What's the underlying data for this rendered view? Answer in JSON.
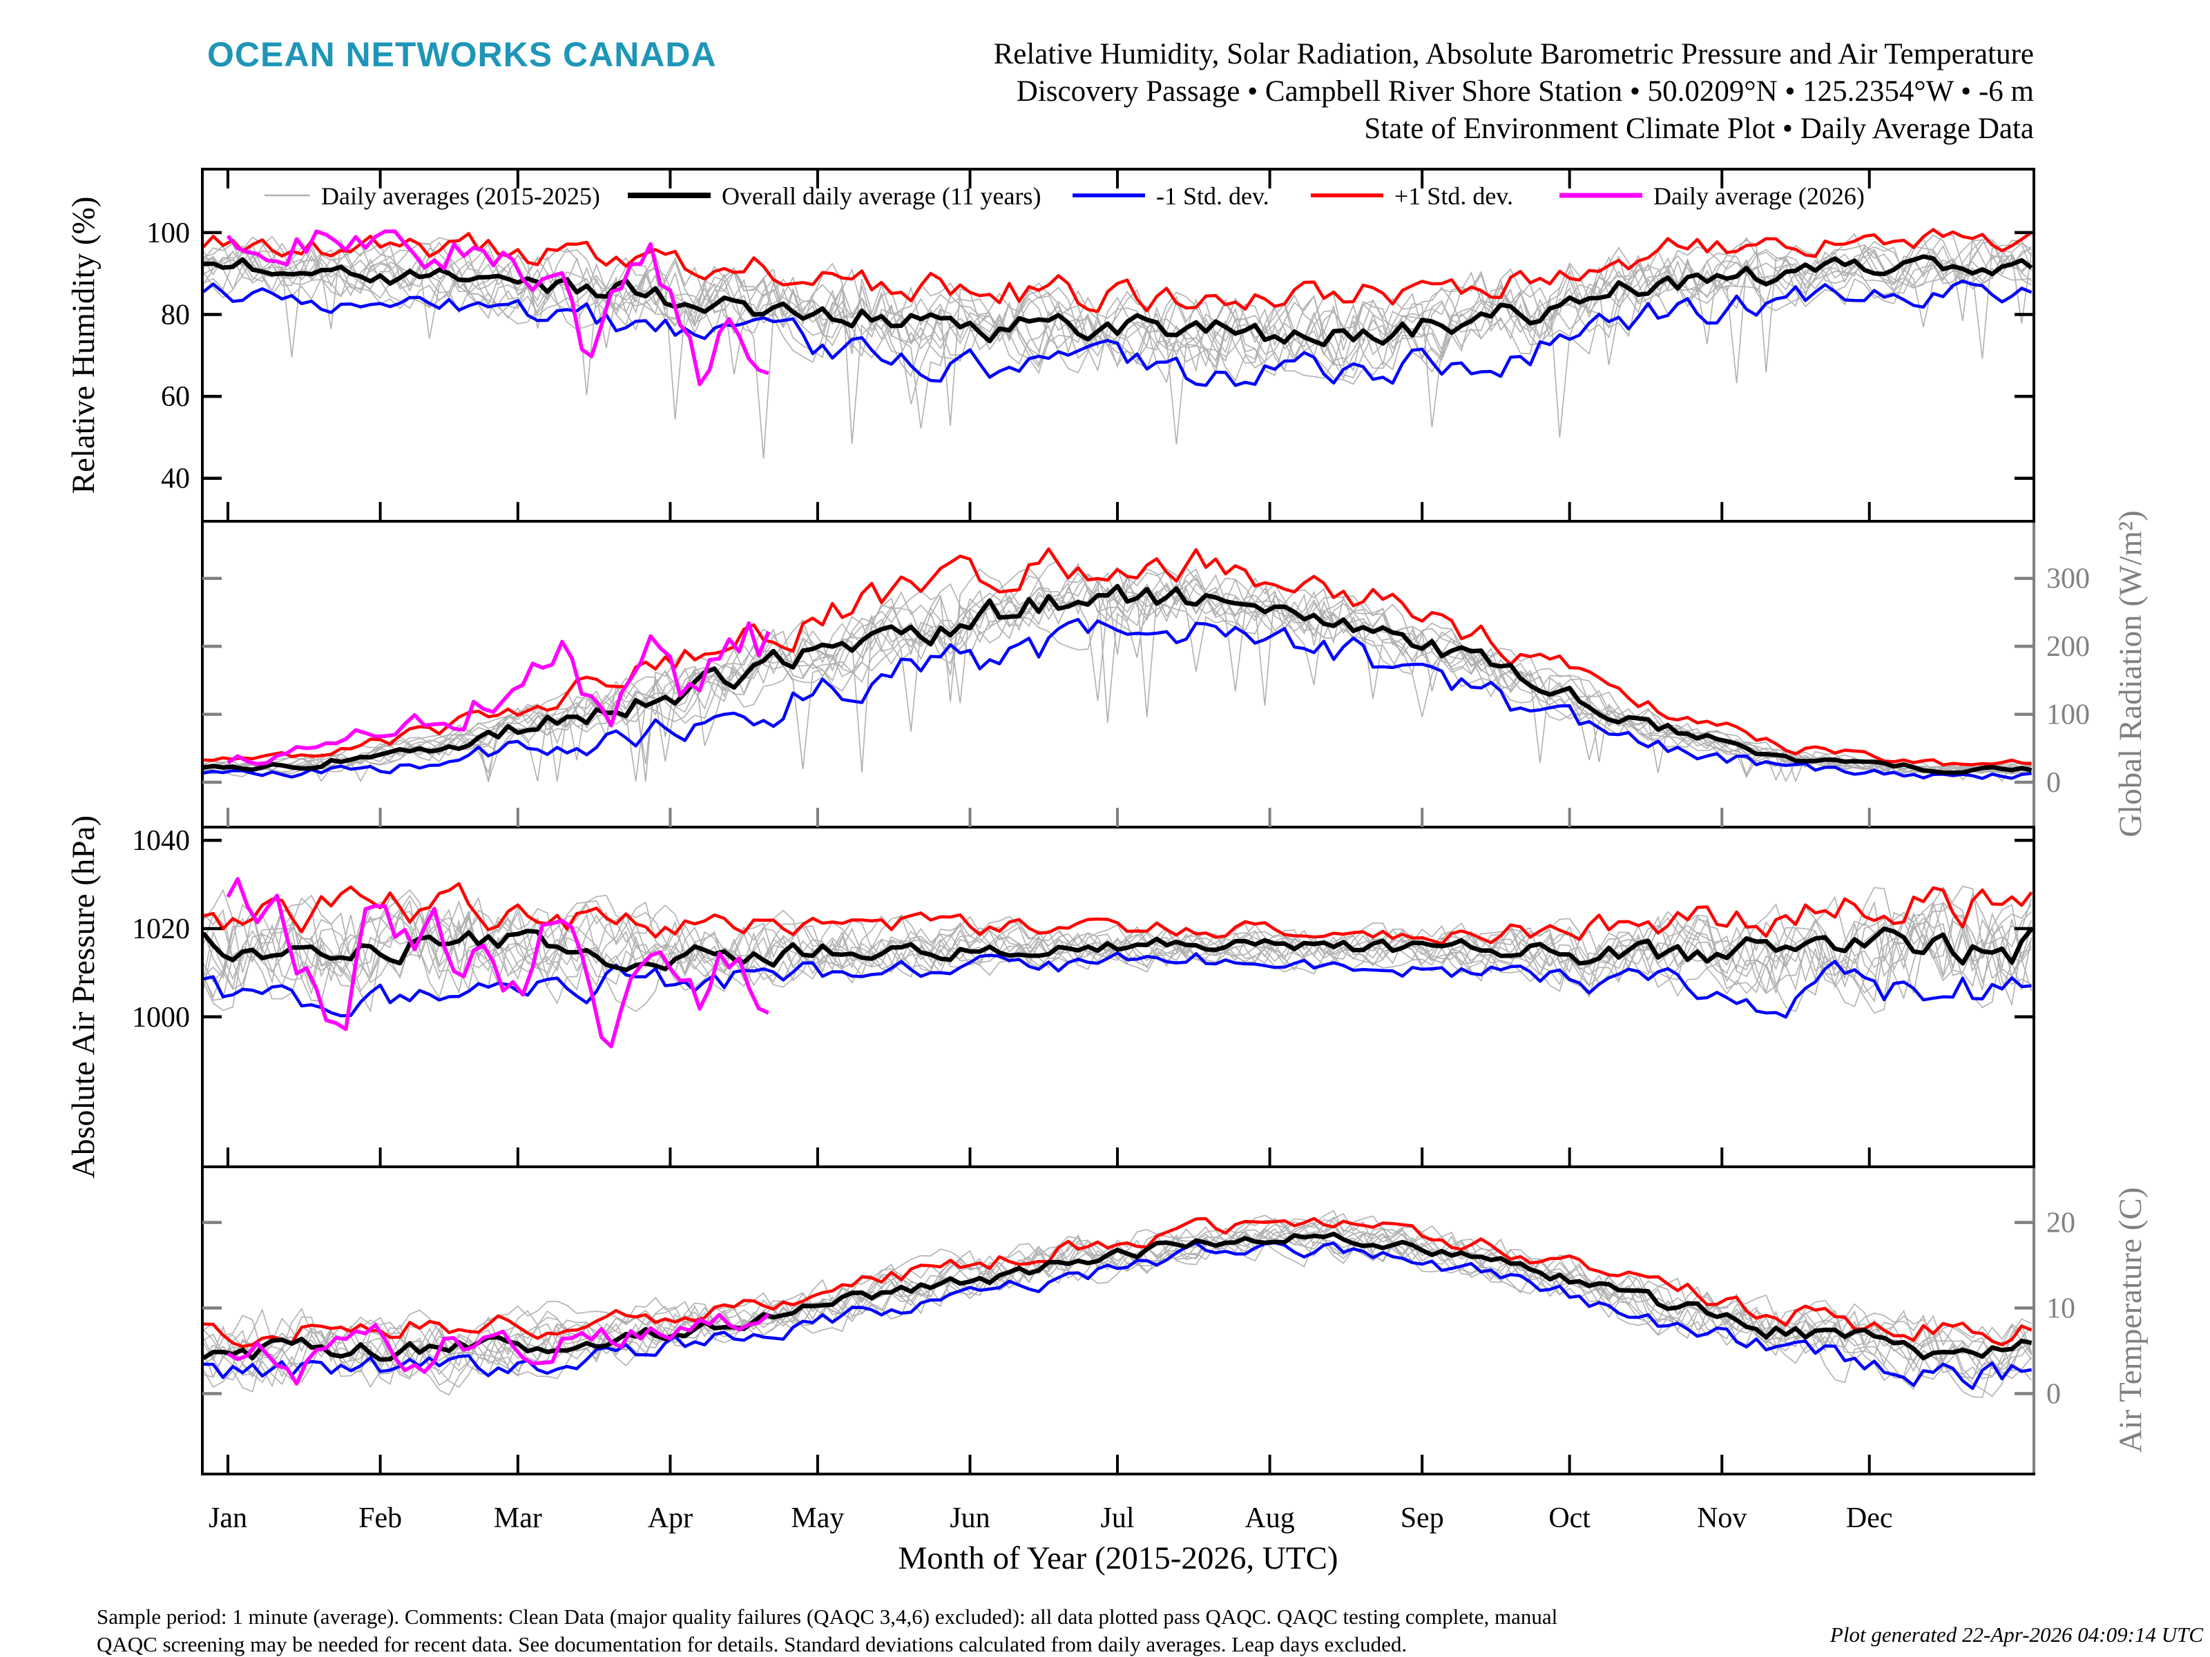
{
  "header": {
    "logo": "OCEAN NETWORKS CANADA",
    "title_line1": "Relative Humidity, Solar Radiation, Absolute Barometric Pressure and Air Temperature",
    "title_line2": "Discovery Passage • Campbell River Shore Station • 50.0209°N • 125.2354°W • -6 m",
    "title_line3": "State of Environment Climate Plot • Daily Average Data"
  },
  "colors": {
    "logo": "#1e96b8",
    "axis_gray": "#808080",
    "gray_line": "#b0b0b0",
    "mean_line": "#000000",
    "minus_std_line": "#0000ff",
    "plus_std_line": "#ff0000",
    "line_2026": "#ff00ff"
  },
  "footer": {
    "line1": "Sample period: 1 minute (average). Comments: Clean Data (major quality failures (QAQC 3,4,6) excluded): all data plotted pass QAQC. QAQC testing complete, manual",
    "line2": "QAQC screening may be needed for recent data. See documentation for details. Standard deviations calculated from daily averages. Leap days excluded.",
    "generated": "Plot generated 22-Apr-2026 04:09:14 UTC"
  },
  "chart_data": {
    "type": "line",
    "title": "State of Environment Climate Plot — Daily Average Data",
    "x_axis": {
      "title": "Month of Year (2015-2026, UTC)",
      "tick_labels": [
        "Jan",
        "Feb",
        "Mar",
        "Apr",
        "May",
        "Jun",
        "Jul",
        "Aug",
        "Sep",
        "Oct",
        "Nov",
        "Dec"
      ],
      "month_start_days": [
        1,
        32,
        60,
        91,
        121,
        152,
        182,
        213,
        244,
        274,
        305,
        335
      ],
      "range_days": [
        -4,
        368
      ]
    },
    "series": [
      {
        "id": "gray",
        "label": "Daily averages (2015-2025)",
        "color": "#b0b0b0",
        "count": 11,
        "lw": 1.6,
        "legend_lw": 2.5
      },
      {
        "id": "mean",
        "label": "Overall daily average (11 years)",
        "color": "#000000",
        "lw": 6.5,
        "legend_lw": 8
      },
      {
        "id": "minus",
        "label": "-1 Std. dev.",
        "color": "#0000ff",
        "lw": 4.5,
        "legend_lw": 5.5
      },
      {
        "id": "plus",
        "label": "+1 Std. dev.",
        "color": "#ff0000",
        "lw": 4.5,
        "legend_lw": 5.5
      },
      {
        "id": "y2026",
        "label": "Daily average (2026)",
        "color": "#ff00ff",
        "lw": 5.5,
        "legend_lw": 7
      }
    ],
    "panels": [
      {
        "id": "relative_humidity",
        "ylabel": "Relative Humidity (%)",
        "label_side": "left",
        "axis_color": "#000000",
        "yticks": [
          40,
          60,
          80,
          100
        ],
        "ylim": [
          29.5,
          115.5
        ],
        "monthly_mean": [
          91,
          89,
          86,
          82.5,
          78.5,
          76,
          75,
          74.5,
          79,
          87,
          90.5,
          92
        ],
        "monthly_std": [
          6,
          7,
          8,
          8.5,
          9,
          9,
          9,
          9,
          9,
          8,
          7,
          6
        ],
        "data_2026": {
          "end_day": 111,
          "days": [
            1,
            8,
            15,
            22,
            29,
            36,
            43,
            50,
            57,
            62,
            68,
            74,
            80,
            86,
            92,
            98,
            104,
            111
          ],
          "values": [
            97,
            99,
            98,
            100,
            99,
            100,
            96,
            99,
            93,
            85,
            97,
            65,
            90,
            97,
            85,
            62,
            80,
            70
          ]
        },
        "noise": {
          "mean": 1.8,
          "band": 2.2,
          "gray": 4.5,
          "gray_offset": 2.5,
          "y2026": 3.5,
          "spike_prob": 0.018,
          "spike_min": 10,
          "spike_max": 32,
          "clamp_max": 100.3,
          "clamp_min": null
        }
      },
      {
        "id": "global_radiation",
        "ylabel": "Global Radiation (W/m²)",
        "label_side": "right",
        "axis_color": "#808080",
        "yticks": [
          0,
          100,
          200,
          300
        ],
        "ylim": [
          -66,
          384
        ],
        "monthly_mean": [
          25,
          55,
          105,
          160,
          215,
          260,
          275,
          240,
          165,
          85,
          35,
          18
        ],
        "monthly_std": [
          12,
          25,
          40,
          52,
          58,
          58,
          52,
          48,
          42,
          28,
          15,
          9
        ],
        "data_2026": {
          "end_day": 111,
          "days": [
            1,
            12,
            24,
            36,
            48,
            60,
            70,
            78,
            86,
            94,
            102,
            111
          ],
          "values": [
            28,
            40,
            58,
            80,
            108,
            150,
            180,
            90,
            210,
            140,
            230,
            200
          ]
        },
        "noise": {
          "mean": 9,
          "band": 11,
          "gray": 16,
          "gray_offset": 9,
          "y2026": 20,
          "spike_prob": 0.03,
          "spike_min": 30,
          "spike_max": 120,
          "clamp_max": null,
          "clamp_min": 1.5
        }
      },
      {
        "id": "absolute_air_pressure",
        "ylabel": "Absolute Air Pressure (hPa)",
        "label_side": "left",
        "axis_color": "#000000",
        "yticks": [
          1000,
          1020,
          1040
        ],
        "ylim": [
          966,
          1043
        ],
        "monthly_mean": [
          1015.5,
          1016,
          1015,
          1014.5,
          1016,
          1015.5,
          1016.5,
          1015.5,
          1015,
          1013.5,
          1014.5,
          1016
        ],
        "monthly_std": [
          9.5,
          8.5,
          7.5,
          6,
          5,
          4,
          3.5,
          3.5,
          4.5,
          6.5,
          8.5,
          9.5
        ],
        "data_2026": {
          "end_day": 111,
          "days": [
            1,
            6,
            12,
            18,
            24,
            30,
            36,
            42,
            48,
            54,
            60,
            66,
            72,
            78,
            84,
            90,
            96,
            102,
            107,
            111
          ],
          "values": [
            1024,
            1027,
            1020,
            1010,
            1003,
            1022,
            1017,
            1021,
            1013,
            1024,
            1005,
            1018,
            1022,
            999,
            1012,
            1021,
            1003,
            1014,
            1008,
            1002
          ]
        },
        "noise": {
          "mean": 1.7,
          "band": 2.0,
          "gray": 4.2,
          "gray_offset": 1.8,
          "y2026": 3,
          "spike_prob": 0,
          "spike_min": 0,
          "spike_max": 0,
          "clamp_max": null,
          "clamp_min": null
        }
      },
      {
        "id": "air_temperature",
        "ylabel": "Air Temperature (C)",
        "label_side": "right",
        "axis_color": "#808080",
        "yticks": [
          0,
          10,
          20
        ],
        "ylim": [
          -9.4,
          26.5
        ],
        "monthly_mean": [
          5.3,
          5.0,
          6.3,
          8.5,
          11.8,
          14.8,
          17.8,
          18.3,
          15.5,
          10.8,
          7.0,
          4.8
        ],
        "monthly_std": [
          2.6,
          2.5,
          2.0,
          1.6,
          1.8,
          1.8,
          1.5,
          1.5,
          1.6,
          1.9,
          2.3,
          2.6
        ],
        "data_2026": {
          "end_day": 111,
          "days": [
            1,
            8,
            16,
            24,
            32,
            40,
            48,
            56,
            64,
            72,
            80,
            88,
            96,
            104,
            111
          ],
          "values": [
            6.5,
            5.5,
            3.0,
            4.5,
            7.5,
            5.0,
            6.5,
            7.0,
            6.0,
            7.5,
            7.0,
            8.0,
            8.5,
            8.0,
            9.0
          ]
        },
        "noise": {
          "mean": 0.55,
          "band": 0.7,
          "gray": 1.5,
          "gray_offset": 1.1,
          "y2026": 1.1,
          "spike_prob": 0,
          "spike_min": 0,
          "spike_max": 0,
          "clamp_max": null,
          "clamp_min": null
        }
      }
    ]
  }
}
